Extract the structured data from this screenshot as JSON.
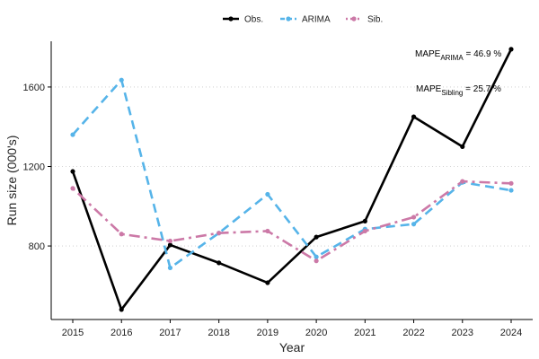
{
  "chart_data": {
    "type": "line",
    "xlabel": "Year",
    "ylabel": "Run size (000's)",
    "xlim": [
      2015,
      2024
    ],
    "ylim": [
      430,
      1830
    ],
    "yticks": [
      800,
      1200,
      1600
    ],
    "xticks": [
      2015,
      2016,
      2017,
      2018,
      2019,
      2020,
      2021,
      2022,
      2023,
      2024
    ],
    "grid": "horizontal-dotted",
    "legend_position": "top",
    "series": [
      {
        "name": "Obs.",
        "color": "#000000",
        "dash": "solid",
        "x": [
          2015,
          2016,
          2017,
          2018,
          2019,
          2020,
          2021,
          2022,
          2023,
          2024
        ],
        "y": [
          1175,
          480,
          805,
          715,
          615,
          845,
          925,
          1450,
          1300,
          1790
        ]
      },
      {
        "name": "ARIMA",
        "color": "#56B4E9",
        "dash": "dashed",
        "x": [
          2015,
          2016,
          2017,
          2018,
          2019,
          2020,
          2021,
          2022,
          2023,
          2024
        ],
        "y": [
          1360,
          1635,
          690,
          865,
          1060,
          745,
          885,
          910,
          1120,
          1080
        ]
      },
      {
        "name": "Sib.",
        "color": "#CC79A7",
        "dash": "dotdash",
        "x": [
          2015,
          2016,
          2017,
          2018,
          2019,
          2020,
          2021,
          2022,
          2023,
          2024
        ],
        "y": [
          1090,
          860,
          825,
          865,
          875,
          725,
          875,
          945,
          1125,
          1115
        ]
      }
    ],
    "annotations": [
      {
        "prefix": "MAPE",
        "subscript": "ARIMA",
        "suffix": " = 46.9 %"
      },
      {
        "prefix": "MAPE",
        "subscript": "Sibling",
        "suffix": " = 25.7 %"
      }
    ]
  }
}
